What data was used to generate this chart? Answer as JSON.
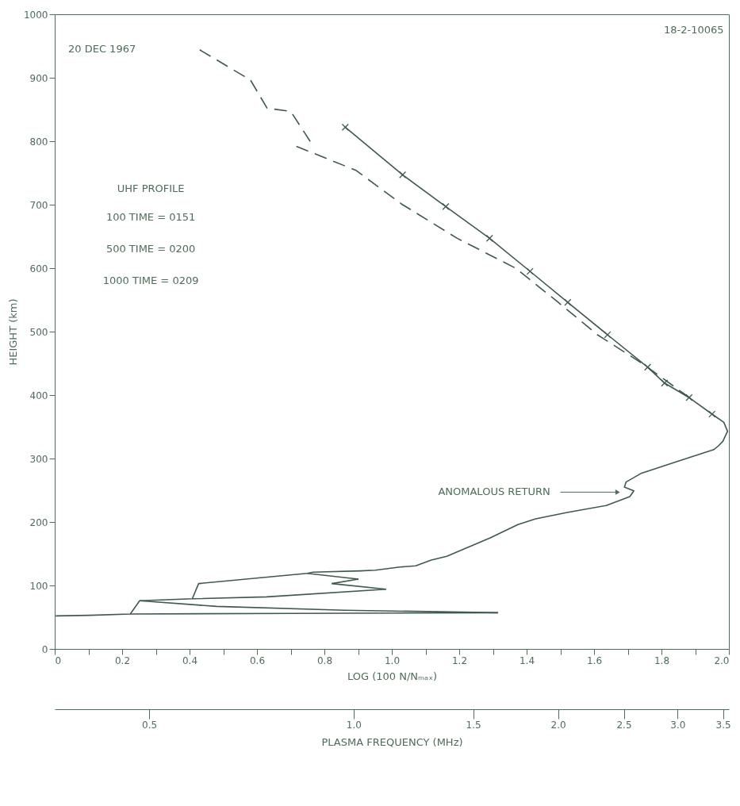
{
  "chart_data": {
    "type": "line",
    "xlabel": "LOG (100 N/Nₘₐₓ)",
    "ylabel": "HEIGHT (km)",
    "x2label": "PLASMA FREQUENCY (MHz)",
    "xlim": [
      0,
      2
    ],
    "ylim": [
      0,
      1000
    ],
    "xticks": [
      0,
      {
        "value": 0.1,
        "label": null
      },
      0.2,
      {
        "value": 0.3,
        "label": null
      },
      0.4,
      {
        "value": 0.5,
        "label": null
      },
      0.6,
      {
        "value": 0.7,
        "label": null
      },
      0.8,
      {
        "value": 0.9,
        "label": null
      },
      {
        "value": 1,
        "label": "1.0"
      },
      {
        "value": 1.1,
        "label": null
      },
      1.2,
      {
        "value": 1.3,
        "label": null
      },
      1.4,
      {
        "value": 1.5,
        "label": null
      },
      1.6,
      {
        "value": 1.7,
        "label": null
      },
      1.8,
      {
        "value": 1.9,
        "label": null
      },
      {
        "value": 2,
        "label": "2.0"
      }
    ],
    "yticks": [
      0,
      100,
      200,
      300,
      400,
      500,
      600,
      700,
      800,
      900,
      1000
    ],
    "x2lim": [
      0.363,
      3.57
    ],
    "log": "x2",
    "x2ticks": [
      0.5,
      {
        "value": 1,
        "label": "1.0"
      },
      1.5,
      {
        "value": 2,
        "label": "2.0"
      },
      2.5,
      {
        "value": 3,
        "label": "3.0"
      },
      3.5
    ],
    "series": [
      {
        "color": "#3f5a4c",
        "line_style": "dashed",
        "marker": "none",
        "x": [
          0.43,
          0.56,
          0.58,
          0.63,
          0.7,
          0.76
        ],
        "values": [
          944,
          903,
          897,
          852,
          847,
          798
        ]
      },
      {
        "color": "#3f5a4c",
        "line_style": "dashed",
        "marker": "none",
        "x": [
          0.717,
          0.894,
          1.029,
          1.194,
          1.367,
          1.494,
          1.61,
          1.745,
          1.883
        ],
        "values": [
          792,
          754,
          701,
          647,
          600,
          546,
          495,
          449,
          396
        ]
      },
      {
        "color": "#3f5a4c",
        "line_style": "solid",
        "marker": "cross",
        "x": [
          0.862,
          1.032,
          1.16,
          1.29,
          1.41,
          1.522,
          1.64,
          1.759,
          1.809,
          1.882,
          1.95
        ],
        "values": [
          822,
          747,
          697,
          647,
          595,
          546,
          495,
          444,
          419,
          396,
          370
        ]
      },
      {
        "color": "#3f5a4c",
        "line_style": "solid",
        "marker": "none",
        "x": [
          1.95,
          1.985,
          1.996,
          1.982,
          1.969,
          1.955,
          1.85,
          1.741,
          1.695,
          1.69,
          1.718,
          1.706,
          1.636,
          1.52,
          1.427,
          1.374,
          1.292,
          1.199,
          1.163,
          1.117,
          1.071,
          1.024,
          0.951,
          0.906,
          0.766,
          0.749,
          0.427,
          0.408,
          0.252,
          0.224,
          0.103,
          0.003
        ],
        "values": [
          370,
          357,
          343,
          327,
          320,
          314,
          296,
          277,
          263,
          255,
          249,
          240,
          226,
          215,
          205,
          196,
          175,
          154,
          146,
          140,
          131,
          129,
          124,
          123,
          121,
          119,
          103,
          79,
          76,
          55,
          53,
          52
        ]
      },
      {
        "color": "#3f5a4c",
        "line_style": "solid",
        "marker": "none",
        "x": [
          0.749,
          0.901
        ],
        "values": [
          119,
          110
        ]
      },
      {
        "color": "#3f5a4c",
        "line_style": "solid",
        "marker": "none",
        "x": [
          0.822,
          0.901
        ],
        "values": [
          103,
          110
        ]
      },
      {
        "color": "#3f5a4c",
        "line_style": "solid",
        "marker": "none",
        "x": [
          0.822,
          0.983
        ],
        "values": [
          103,
          94
        ]
      },
      {
        "color": "#3f5a4c",
        "line_style": "solid",
        "marker": "none",
        "x": [
          0.408,
          0.629,
          0.983
        ],
        "values": [
          79,
          82,
          94
        ]
      },
      {
        "color": "#3f5a4c",
        "line_style": "solid",
        "marker": "none",
        "x": [
          0.252,
          0.48,
          0.86,
          1.315
        ],
        "values": [
          76,
          67,
          61,
          57
        ]
      },
      {
        "color": "#3f5a4c",
        "line_style": "solid",
        "marker": "none",
        "x": [
          0.224,
          0.7,
          1.315
        ],
        "values": [
          55,
          56,
          57
        ]
      }
    ],
    "annotations": [
      "20 DEC 1967",
      "UHF PROFILE",
      "100  TIME = 0151",
      "500  TIME = 0200",
      "1000  TIME = 0209",
      "18-2-10065",
      "ANOMALOUS RETURN"
    ]
  }
}
